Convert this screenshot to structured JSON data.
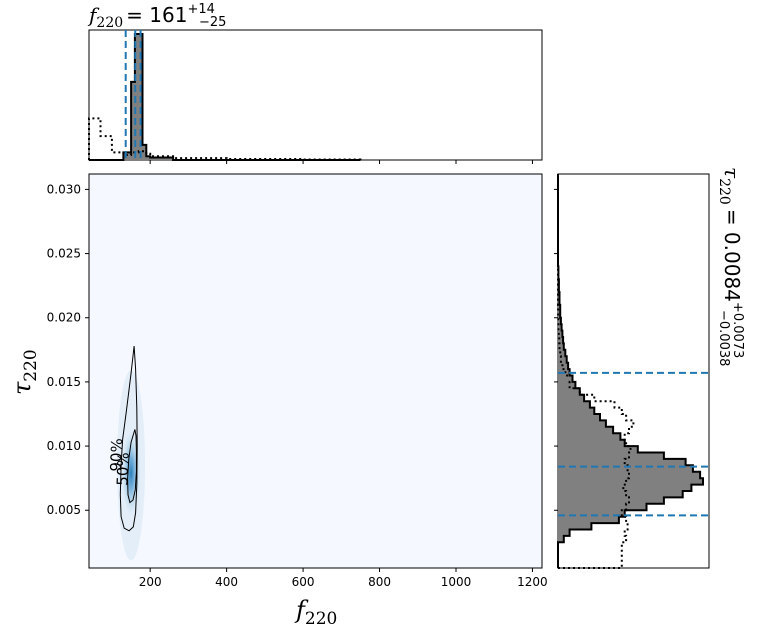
{
  "chart_data": {
    "type": "corner-posterior",
    "top_title": {
      "symbol": "f",
      "subscript": "220",
      "equals": "= 161",
      "sup": "+14",
      "sub": "−25"
    },
    "right_title": {
      "symbol": "τ",
      "subscript": "220",
      "equals": "= 0.0084",
      "sup": "+0.0073",
      "sub": "−0.0038"
    },
    "xlabel": {
      "symbol": "f",
      "subscript": "220"
    },
    "ylabel": {
      "symbol": "τ",
      "subscript": "220"
    },
    "xlim": [
      40,
      1225
    ],
    "ylim": [
      0.0005,
      0.0312
    ],
    "xticks": [
      {
        "v": 200,
        "label": "200"
      },
      {
        "v": 400,
        "label": "400"
      },
      {
        "v": 600,
        "label": "600"
      },
      {
        "v": 800,
        "label": "800"
      },
      {
        "v": 1000,
        "label": "1000"
      },
      {
        "v": 1200,
        "label": "1200"
      }
    ],
    "yticks": [
      {
        "v": 0.005,
        "label": "0.005"
      },
      {
        "v": 0.01,
        "label": "0.010"
      },
      {
        "v": 0.015,
        "label": "0.015"
      },
      {
        "v": 0.02,
        "label": "0.020"
      },
      {
        "v": 0.025,
        "label": "0.025"
      },
      {
        "v": 0.03,
        "label": "0.030"
      }
    ],
    "contour_labels": [
      {
        "label": "90%",
        "x": 125,
        "y": 0.0093
      },
      {
        "label": "50%",
        "x": 142,
        "y": 0.0082
      }
    ],
    "contour_90": [
      [
        158,
        0.0178
      ],
      [
        150,
        0.0157
      ],
      [
        138,
        0.0128
      ],
      [
        128,
        0.0105
      ],
      [
        124,
        0.0085
      ],
      [
        122,
        0.0062
      ],
      [
        124,
        0.0045
      ],
      [
        132,
        0.0036
      ],
      [
        145,
        0.0034
      ],
      [
        156,
        0.0037
      ],
      [
        162,
        0.0048
      ],
      [
        165,
        0.007
      ],
      [
        166,
        0.01
      ],
      [
        165,
        0.013
      ],
      [
        162,
        0.016
      ]
    ],
    "contour_50": [
      [
        160,
        0.0113
      ],
      [
        150,
        0.0103
      ],
      [
        144,
        0.009
      ],
      [
        141,
        0.0075
      ],
      [
        142,
        0.0062
      ],
      [
        147,
        0.0056
      ],
      [
        155,
        0.0058
      ],
      [
        161,
        0.0066
      ],
      [
        164,
        0.008
      ],
      [
        164,
        0.0096
      ],
      [
        163,
        0.0108
      ]
    ],
    "density_color": "#2171b5",
    "top_hist": {
      "x_bins": [
        40,
        70,
        100,
        130,
        150,
        160,
        170,
        180,
        190,
        200,
        260,
        400,
        600,
        750
      ],
      "posterior": [
        0,
        0,
        0,
        0.06,
        0.62,
        1.0,
        1.0,
        0.12,
        0.03,
        0.02,
        0.0,
        0,
        0
      ],
      "prior": [
        0.33,
        0.19,
        0.06,
        0.04,
        0.06,
        0.06,
        0.07,
        0.07,
        0.05,
        0.03,
        0.015,
        0.008,
        0.004
      ],
      "quantiles": [
        136,
        161,
        175
      ]
    },
    "right_hist": {
      "y_bins": [
        0.0005,
        0.0025,
        0.003,
        0.0035,
        0.004,
        0.0045,
        0.005,
        0.0055,
        0.006,
        0.0065,
        0.007,
        0.0075,
        0.008,
        0.0085,
        0.009,
        0.0095,
        0.01,
        0.0105,
        0.011,
        0.0115,
        0.012,
        0.0125,
        0.013,
        0.0135,
        0.014,
        0.0145,
        0.015,
        0.0155,
        0.016,
        0.0165,
        0.017,
        0.0175,
        0.018,
        0.0185,
        0.019,
        0.0195,
        0.02,
        0.021,
        0.022,
        0.023,
        0.024,
        0.0312
      ],
      "posterior": [
        0,
        0.04,
        0.08,
        0.23,
        0.42,
        0.46,
        0.61,
        0.73,
        0.86,
        0.92,
        1.0,
        0.98,
        0.93,
        0.88,
        0.73,
        0.55,
        0.46,
        0.43,
        0.38,
        0.33,
        0.29,
        0.25,
        0.22,
        0.18,
        0.15,
        0.12,
        0.1,
        0.08,
        0.07,
        0.06,
        0.05,
        0.04,
        0.035,
        0.03,
        0.025,
        0.02,
        0.015,
        0.01,
        0.006,
        0.003,
        0
      ],
      "prior": [
        0.44,
        0.47,
        0.46,
        0.48,
        0.47,
        0.44,
        0.47,
        0.49,
        0.47,
        0.45,
        0.47,
        0.49,
        0.48,
        0.46,
        0.49,
        0.5,
        0.47,
        0.46,
        0.49,
        0.52,
        0.47,
        0.44,
        0.39,
        0.25,
        0.15,
        0.08,
        0.1,
        0.05,
        0.03,
        0.02,
        0.015,
        0.01,
        0.008,
        0.005,
        0.003,
        0.002,
        0.001,
        0,
        0,
        0,
        0
      ],
      "quantiles": [
        0.0046,
        0.0084,
        0.0157
      ]
    },
    "grid": false,
    "quantile_color": "#1f77b4",
    "posterior_fill": "#808080"
  }
}
